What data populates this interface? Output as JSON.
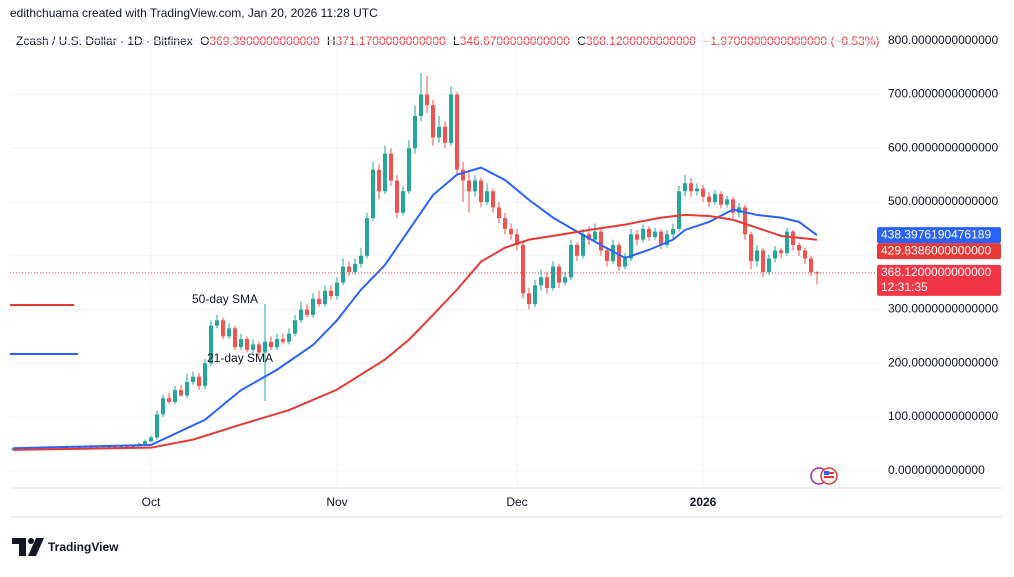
{
  "chart_data": {
    "type": "candlestick",
    "credit": "edithchuama created with TradingView.com, Jan 20, 2026 11:28 UTC",
    "title": "Zcash / U.S. Dollar · 1D · Bitfinex",
    "legend_ohlc": [
      {
        "label": "O",
        "value": "369.3900000000000"
      },
      {
        "label": "H",
        "value": "371.1700000000000"
      },
      {
        "label": "L",
        "value": "346.6700000000000"
      },
      {
        "label": "C",
        "value": "368.1200000000000"
      }
    ],
    "change": "−1.9700000000000000 (−0.53%)",
    "up_color": "#26a69a",
    "down_color": "#ef5350",
    "xlim": [
      -0.5,
      144.5
    ],
    "xticks": [
      {
        "value": 23,
        "label": "Oct"
      },
      {
        "value": 54,
        "label": "Nov"
      },
      {
        "value": 84,
        "label": "Dec"
      },
      {
        "value": 115,
        "label": "2026"
      }
    ],
    "ylim": [
      -32,
      820
    ],
    "yticks": [
      {
        "value": 0,
        "label": "0.0000000000000"
      },
      {
        "value": 100,
        "label": "100.0000000000000"
      },
      {
        "value": 200,
        "label": "200.0000000000000"
      },
      {
        "value": 300,
        "label": "300.0000000000000"
      },
      {
        "value": 400,
        "label": "400.0000000000000"
      },
      {
        "value": 500,
        "label": "500.0000000000000"
      },
      {
        "value": 600,
        "label": "600.0000000000000"
      },
      {
        "value": 700,
        "label": "700.0000000000000"
      },
      {
        "value": 800,
        "label": "800.0000000000000"
      }
    ],
    "grid": true,
    "open": [
      40,
      41,
      42,
      41,
      43,
      42,
      44,
      43,
      42,
      44,
      45,
      44,
      43,
      45,
      44,
      43,
      44,
      45,
      44,
      46,
      45,
      46,
      50,
      55,
      62,
      105,
      135,
      128,
      150,
      140,
      165,
      175,
      158,
      200,
      270,
      280,
      250,
      265,
      230,
      245,
      225,
      235,
      220,
      240,
      230,
      245,
      240,
      255,
      280,
      300,
      290,
      320,
      310,
      335,
      325,
      350,
      380,
      370,
      385,
      400,
      470,
      560,
      520,
      590,
      540,
      480,
      520,
      600,
      660,
      700,
      680,
      620,
      640,
      610,
      700,
      560,
      540,
      520,
      540,
      500,
      520,
      490,
      470,
      450,
      440,
      420,
      330,
      310,
      345,
      360,
      340,
      380,
      350,
      360,
      420,
      400,
      440,
      430,
      445,
      410,
      390,
      420,
      380,
      395,
      440,
      430,
      450,
      435,
      445,
      420,
      440,
      450,
      520,
      535,
      520,
      525,
      510,
      500,
      515,
      495,
      505,
      480,
      490,
      440,
      390,
      410,
      370,
      395,
      410,
      405,
      445,
      420,
      410,
      395,
      369.39
    ],
    "high": [
      43,
      44,
      44,
      45,
      45,
      46,
      46,
      45,
      46,
      47,
      47,
      46,
      47,
      47,
      46,
      46,
      47,
      47,
      48,
      48,
      48,
      53,
      58,
      66,
      112,
      142,
      145,
      158,
      160,
      180,
      185,
      182,
      208,
      280,
      290,
      285,
      275,
      270,
      255,
      250,
      245,
      240,
      310,
      250,
      255,
      255,
      265,
      290,
      315,
      310,
      330,
      335,
      345,
      345,
      360,
      395,
      390,
      395,
      415,
      480,
      575,
      570,
      605,
      600,
      550,
      530,
      615,
      680,
      740,
      735,
      690,
      660,
      650,
      715,
      705,
      575,
      555,
      550,
      545,
      535,
      525,
      500,
      480,
      460,
      450,
      425,
      340,
      355,
      375,
      370,
      390,
      385,
      370,
      430,
      425,
      450,
      455,
      460,
      450,
      415,
      430,
      425,
      405,
      450,
      448,
      458,
      455,
      452,
      450,
      448,
      460,
      530,
      550,
      545,
      535,
      532,
      518,
      522,
      520,
      512,
      510,
      498,
      495,
      445,
      420,
      415,
      402,
      418,
      415,
      452,
      448,
      425,
      415,
      400,
      371.17
    ],
    "low": [
      38,
      39,
      39,
      39,
      40,
      40,
      41,
      41,
      40,
      40,
      42,
      41,
      41,
      42,
      41,
      41,
      42,
      42,
      42,
      43,
      43,
      44,
      48,
      53,
      58,
      100,
      125,
      124,
      138,
      135,
      160,
      150,
      152,
      195,
      265,
      245,
      245,
      225,
      225,
      220,
      218,
      215,
      130,
      225,
      225,
      235,
      235,
      250,
      275,
      285,
      285,
      305,
      305,
      318,
      318,
      345,
      362,
      365,
      378,
      395,
      465,
      505,
      515,
      530,
      470,
      475,
      515,
      590,
      650,
      665,
      605,
      610,
      600,
      605,
      550,
      500,
      480,
      510,
      490,
      495,
      480,
      460,
      440,
      430,
      410,
      320,
      300,
      305,
      335,
      330,
      335,
      340,
      345,
      355,
      390,
      395,
      420,
      425,
      400,
      380,
      385,
      372,
      375,
      390,
      420,
      425,
      428,
      430,
      412,
      415,
      432,
      445,
      510,
      510,
      512,
      500,
      490,
      495,
      488,
      490,
      470,
      472,
      430,
      375,
      380,
      360,
      365,
      388,
      395,
      400,
      410,
      400,
      385,
      362,
      346.67
    ],
    "close": [
      41,
      42,
      41,
      43,
      42,
      44,
      43,
      42,
      44,
      45,
      44,
      43,
      45,
      44,
      43,
      44,
      45,
      44,
      46,
      45,
      46,
      50,
      55,
      62,
      105,
      135,
      128,
      150,
      140,
      165,
      175,
      158,
      200,
      270,
      280,
      250,
      265,
      230,
      245,
      225,
      235,
      220,
      240,
      230,
      245,
      240,
      255,
      280,
      300,
      290,
      320,
      310,
      335,
      325,
      350,
      380,
      370,
      385,
      400,
      470,
      560,
      520,
      590,
      540,
      480,
      520,
      600,
      660,
      700,
      680,
      620,
      640,
      610,
      700,
      560,
      540,
      520,
      540,
      500,
      520,
      490,
      470,
      450,
      440,
      420,
      330,
      310,
      345,
      360,
      340,
      380,
      350,
      360,
      420,
      400,
      440,
      430,
      445,
      410,
      390,
      420,
      380,
      395,
      440,
      430,
      450,
      435,
      445,
      420,
      440,
      450,
      520,
      535,
      520,
      525,
      510,
      500,
      515,
      495,
      505,
      480,
      490,
      440,
      390,
      410,
      370,
      395,
      410,
      405,
      445,
      420,
      410,
      395,
      369.39,
      368.12
    ],
    "series": [
      {
        "name": "21-day SMA",
        "color": "#2962ff",
        "x": [
          0,
          23,
          32,
          38,
          44,
          50,
          54,
          58,
          62,
          66,
          70,
          74,
          78,
          82,
          86,
          90,
          94,
          98,
          102,
          106,
          110,
          112,
          116,
          120,
          124,
          128,
          131,
          134
        ],
        "values": [
          42,
          48,
          95,
          150,
          188,
          234,
          280,
          337,
          383,
          448,
          513,
          551,
          564,
          541,
          504,
          471,
          445,
          420,
          396,
          411,
          430,
          448,
          463,
          486,
          476,
          471,
          463,
          438.3976190476189
        ]
      },
      {
        "name": "50-day SMA",
        "color": "#e53935",
        "x": [
          0,
          23,
          30,
          38,
          46,
          54,
          62,
          66,
          70,
          74,
          78,
          82,
          86,
          90,
          96,
          102,
          108,
          112,
          116,
          120,
          124,
          128,
          134
        ],
        "values": [
          39,
          43,
          58,
          86,
          113,
          151,
          207,
          244,
          290,
          337,
          389,
          415,
          430,
          437,
          448,
          458,
          471,
          476,
          474,
          467,
          452,
          437,
          429.8386
        ]
      }
    ],
    "price_tags": [
      {
        "value": 438.3976190476189,
        "label": "438.3976190476189",
        "color": "#2962ff"
      },
      {
        "value": 429.8386,
        "label": "429.8386000000000",
        "color": "#e53935"
      },
      {
        "value": 368.12,
        "label": "368.1200000000000",
        "color": "#f23645",
        "countdown": "12:31:35"
      }
    ],
    "branding": "TradingView"
  }
}
